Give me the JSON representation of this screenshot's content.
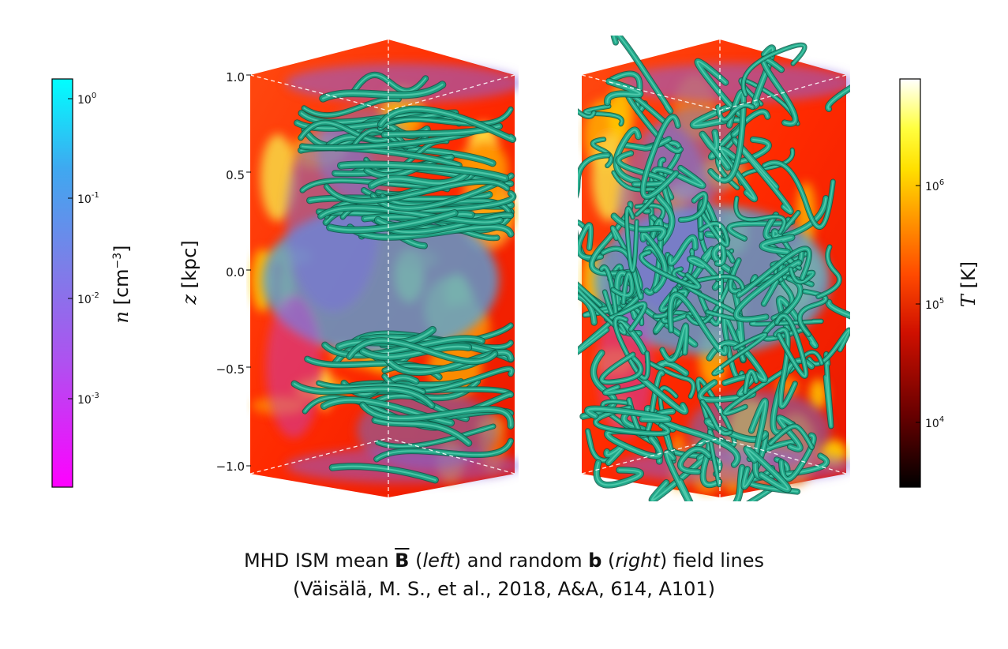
{
  "left_colorbar": {
    "colors": [
      "#ff00ff",
      "#b050f0",
      "#7a80e8",
      "#3fa8f0",
      "#00ffff"
    ],
    "tick_labels": [
      {
        "base": "10",
        "exp": "0"
      },
      {
        "base": "10",
        "exp": "-1"
      },
      {
        "base": "10",
        "exp": "-2"
      },
      {
        "base": "10",
        "exp": "-3"
      }
    ],
    "label_var": "n",
    "label_unit": "[cm",
    "label_exp": "−3",
    "label_close": "]"
  },
  "right_colorbar": {
    "colors": [
      "#000000",
      "#6a0000",
      "#d01000",
      "#ff4a00",
      "#ff9800",
      "#ffe000",
      "#ffff40",
      "#ffffff"
    ],
    "tick_labels": [
      {
        "base": "10",
        "exp": "6"
      },
      {
        "base": "10",
        "exp": "5"
      },
      {
        "base": "10",
        "exp": "4"
      }
    ],
    "label_var": "T",
    "label_unit": "[K]"
  },
  "z_axis": {
    "label_var": "z",
    "label_unit": "[kpc]",
    "ticks": [
      "1.0",
      "0.5",
      "0.0",
      "−0.5",
      "−1.0"
    ]
  },
  "panels": [
    {
      "id": "mean-field",
      "tube_color": "#1e9e80",
      "gas_color": "#4aa8e8"
    },
    {
      "id": "random-field",
      "tube_color": "#22a88a",
      "gas_color": "#4aa8e8"
    }
  ],
  "caption": {
    "line1_prefix": "MHD ISM mean ",
    "line1_B": "B",
    "line1_mid1": " (",
    "line1_left": "left",
    "line1_mid2": ") and random ",
    "line1_b": "b",
    "line1_mid3": " (",
    "line1_right": "right",
    "line1_suffix": ") field lines",
    "line2": "(Väisälä, M. S., et al., 2018, A&A, 614, A101)"
  }
}
